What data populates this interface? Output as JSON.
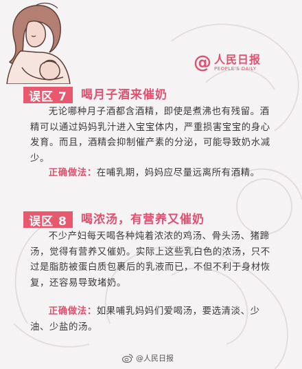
{
  "logo": {
    "at_symbol": "@",
    "name_cn": "人民日报",
    "name_en": "PEOPLE'S DAILY"
  },
  "sections": [
    {
      "badge": "误区 7",
      "headline": "喝月子酒来催奶",
      "body": "无论哪种月子酒都含酒精，即使是煮沸也有残留。酒精可以通过妈妈乳汁进入宝宝体内，严重损害宝宝的身心发育。而且，酒精会抑制催产素的分泌，可能导致奶水减少。",
      "tip_label": "正确做法：",
      "tip_text": "在哺乳期，妈妈应尽量远离所有酒精。"
    },
    {
      "badge": "误区 8",
      "headline": "喝浓汤，有营养又催奶",
      "body": "不少产妇每天喝各种炖着浓浓的鸡汤、骨头汤、猪蹄汤，觉得有营养又催奶。实际上这些乳白色的浓汤，只不过是脂肪被蛋白质包裹后的乳液而已，不但不利于身材恢复，还容易导致堵奶。",
      "tip_label": "正确做法：",
      "tip_text": "如果哺乳妈妈们爱喝汤，要选清淡、少油、少盐的汤。"
    }
  ],
  "footer": {
    "watermark": "@人民日报"
  },
  "colors": {
    "accent": "#e24f6f",
    "badge_bg": "#e8586f",
    "text": "#3a3a3a",
    "background": "#f6f3f4"
  },
  "icons": {
    "illustration": "mother-breastfeeding-illustration",
    "footer_logo": "weibo-icon"
  }
}
